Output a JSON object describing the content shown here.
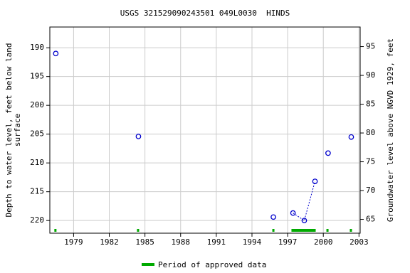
{
  "chart_data": {
    "type": "scatter",
    "title": "USGS 321529090243501 049L0030  HINDS",
    "ylabel": [
      "Depth to water level, feet below land",
      "surface"
    ],
    "y2label": "Groundwater level above NGVD 1929, feet",
    "x": [
      1977.5,
      null,
      1984.45,
      null,
      1995.8,
      null,
      1997.45,
      1998.4,
      1999.3,
      null,
      2000.4,
      null,
      2002.35
    ],
    "series": [
      {
        "name": "Depth to water level",
        "color": "#0000cc",
        "values": [
          191.0,
          null,
          205.4,
          null,
          219.4,
          null,
          218.7,
          220.0,
          213.2,
          null,
          208.3,
          null,
          205.5
        ]
      }
    ],
    "xlim": [
      1977.0,
      2003.1
    ],
    "xticks": [
      1979,
      1982,
      1985,
      1988,
      1991,
      1994,
      1997,
      2000,
      2003
    ],
    "ylim": [
      186.4,
      222.2
    ],
    "yticks": [
      190,
      195,
      200,
      205,
      210,
      215,
      220
    ],
    "y_inverted": true,
    "y2lim": [
      62.6,
      98.4
    ],
    "y2ticks": [
      65,
      70,
      75,
      80,
      85,
      90,
      95
    ],
    "grid": true,
    "approved_periods": [
      [
        1977.38,
        1977.56
      ],
      [
        1984.33,
        1984.51
      ],
      [
        1995.71,
        1995.89
      ],
      [
        1997.32,
        1999.36
      ],
      [
        2000.26,
        2000.44
      ],
      [
        2002.23,
        2002.41
      ]
    ],
    "approved_color": "#00aa00",
    "legend": "Period of approved data"
  }
}
